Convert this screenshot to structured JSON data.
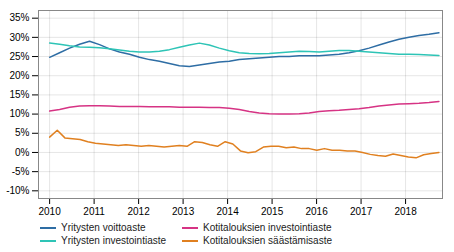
{
  "chart_data": {
    "type": "line",
    "xlim": [
      2009.75,
      2018.83
    ],
    "xticks": [
      2010,
      2011,
      2012,
      2013,
      2014,
      2015,
      2016,
      2017,
      2018
    ],
    "ylim": [
      -0.12,
      0.37
    ],
    "yticks": [
      {
        "value": -0.1,
        "label": "-10%"
      },
      {
        "value": -0.05,
        "label": "-5%"
      },
      {
        "value": 0.0,
        "label": "0%"
      },
      {
        "value": 0.05,
        "label": "5%"
      },
      {
        "value": 0.1,
        "label": "10%"
      },
      {
        "value": 0.15,
        "label": "15%"
      },
      {
        "value": 0.2,
        "label": "20%"
      },
      {
        "value": 0.25,
        "label": "25%"
      },
      {
        "value": 0.3,
        "label": "30%"
      },
      {
        "value": 0.35,
        "label": "35%"
      }
    ],
    "grid": true,
    "legend": "bottom",
    "series": [
      {
        "name": "Yritysten voittoaste",
        "color": "#2e6da4",
        "x": [
          2010,
          2010.224359,
          2010.448718,
          2010.673077,
          2010.897436,
          2011.121795,
          2011.346154,
          2011.570513,
          2011.794872,
          2012.019231,
          2012.24359,
          2012.467949,
          2012.692308,
          2012.916667,
          2013.141026,
          2013.365385,
          2013.589744,
          2013.814103,
          2014.038462,
          2014.262821,
          2014.487179,
          2014.711538,
          2014.935897,
          2015.160256,
          2015.384615,
          2015.608974,
          2015.833333,
          2016.057692,
          2016.282051,
          2016.50641,
          2016.730769,
          2016.955128,
          2017.179487,
          2017.403846,
          2017.628205,
          2017.852564,
          2018.076923,
          2018.301282,
          2018.525641,
          2018.75
        ],
        "values": [
          0.248,
          0.26,
          0.272,
          0.282,
          0.29,
          0.281,
          0.27,
          0.262,
          0.256,
          0.248,
          0.242,
          0.238,
          0.232,
          0.226,
          0.224,
          0.228,
          0.232,
          0.236,
          0.238,
          0.242,
          0.244,
          0.246,
          0.248,
          0.25,
          0.25,
          0.252,
          0.252,
          0.252,
          0.254,
          0.256,
          0.26,
          0.265,
          0.272,
          0.28,
          0.288,
          0.295,
          0.3,
          0.305,
          0.308,
          0.312
        ]
      },
      {
        "name": "Kotitalouksien investointiaste",
        "color": "#d63384",
        "x": [
          2010,
          2010.224359,
          2010.448718,
          2010.673077,
          2010.897436,
          2011.121795,
          2011.346154,
          2011.570513,
          2011.794872,
          2012.019231,
          2012.24359,
          2012.467949,
          2012.692308,
          2012.916667,
          2013.141026,
          2013.365385,
          2013.589744,
          2013.814103,
          2014.038462,
          2014.262821,
          2014.487179,
          2014.711538,
          2014.935897,
          2015.160256,
          2015.384615,
          2015.608974,
          2015.833333,
          2016.057692,
          2016.282051,
          2016.50641,
          2016.730769,
          2016.955128,
          2017.179487,
          2017.403846,
          2017.628205,
          2017.852564,
          2018.076923,
          2018.301282,
          2018.525641,
          2018.75
        ],
        "values": [
          0.108,
          0.112,
          0.118,
          0.121,
          0.122,
          0.122,
          0.121,
          0.12,
          0.12,
          0.12,
          0.119,
          0.119,
          0.119,
          0.118,
          0.118,
          0.118,
          0.117,
          0.117,
          0.115,
          0.112,
          0.107,
          0.103,
          0.101,
          0.1,
          0.1,
          0.101,
          0.103,
          0.107,
          0.109,
          0.11,
          0.112,
          0.114,
          0.117,
          0.121,
          0.124,
          0.126,
          0.127,
          0.128,
          0.13,
          0.133
        ]
      },
      {
        "name": "Yritysten investointiaste",
        "color": "#2ec4b6",
        "x": [
          2010,
          2010.224359,
          2010.448718,
          2010.673077,
          2010.897436,
          2011.121795,
          2011.346154,
          2011.570513,
          2011.794872,
          2012.019231,
          2012.24359,
          2012.467949,
          2012.692308,
          2012.916667,
          2013.141026,
          2013.365385,
          2013.589744,
          2013.814103,
          2014.038462,
          2014.262821,
          2014.487179,
          2014.711538,
          2014.935897,
          2015.160256,
          2015.384615,
          2015.608974,
          2015.833333,
          2016.057692,
          2016.282051,
          2016.50641,
          2016.730769,
          2016.955128,
          2017.179487,
          2017.403846,
          2017.628205,
          2017.852564,
          2018.076923,
          2018.301282,
          2018.525641,
          2018.75
        ],
        "values": [
          0.285,
          0.282,
          0.278,
          0.275,
          0.274,
          0.273,
          0.27,
          0.267,
          0.264,
          0.262,
          0.262,
          0.264,
          0.268,
          0.274,
          0.28,
          0.285,
          0.28,
          0.272,
          0.265,
          0.26,
          0.258,
          0.257,
          0.258,
          0.26,
          0.262,
          0.264,
          0.263,
          0.262,
          0.264,
          0.266,
          0.266,
          0.264,
          0.262,
          0.26,
          0.258,
          0.256,
          0.256,
          0.255,
          0.254,
          0.253
        ]
      },
      {
        "name": "Kotitalouksien säästämisaste",
        "color": "#e08020",
        "x": [
          2010,
          2010.171569,
          2010.343137,
          2010.514706,
          2010.686275,
          2010.857843,
          2011.029412,
          2011.20098,
          2011.372549,
          2011.544118,
          2011.715686,
          2011.887255,
          2012.058824,
          2012.230392,
          2012.401961,
          2012.573529,
          2012.745098,
          2012.916667,
          2013.088235,
          2013.259804,
          2013.431373,
          2013.602941,
          2013.77451,
          2013.946078,
          2014.117647,
          2014.289216,
          2014.460784,
          2014.632353,
          2014.803922,
          2014.97549,
          2015.147059,
          2015.318627,
          2015.490196,
          2015.661765,
          2015.833333,
          2016.004902,
          2016.176471,
          2016.348039,
          2016.519608,
          2016.691176,
          2016.862745,
          2017.034314,
          2017.205882,
          2017.377451,
          2017.54902,
          2017.720588,
          2017.892157,
          2018.063725,
          2018.235294,
          2018.406863,
          2018.578431,
          2018.75
        ],
        "values": [
          0.04,
          0.058,
          0.038,
          0.036,
          0.034,
          0.028,
          0.024,
          0.022,
          0.02,
          0.018,
          0.02,
          0.018,
          0.016,
          0.018,
          0.016,
          0.014,
          0.016,
          0.018,
          0.016,
          0.028,
          0.026,
          0.02,
          0.016,
          0.028,
          0.022,
          0.004,
          -0.001,
          0.002,
          0.014,
          0.016,
          0.016,
          0.012,
          0.014,
          0.01,
          0.01,
          0.006,
          0.01,
          0.006,
          0.006,
          0.004,
          0.004,
          0.0,
          -0.005,
          -0.008,
          -0.01,
          -0.004,
          -0.008,
          -0.012,
          -0.014,
          -0.006,
          -0.003,
          0.0
        ]
      }
    ]
  }
}
